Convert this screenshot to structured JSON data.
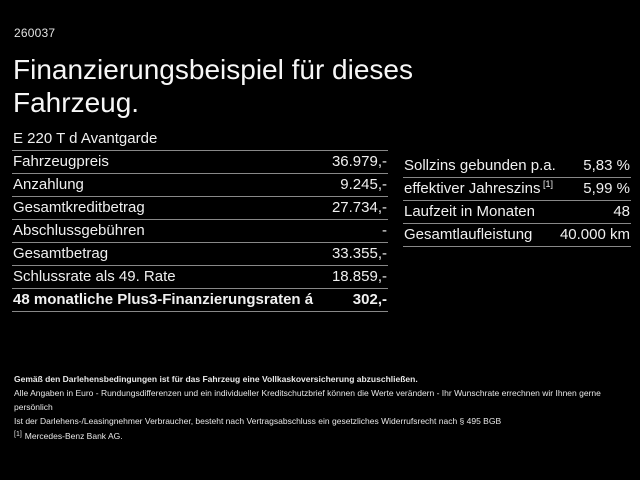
{
  "header": {
    "code": "260037",
    "title": "Finanzierungsbeispiel für dieses Fahrzeug.",
    "vehicle_model": "E 220 T d Avantgarde"
  },
  "finance_table": {
    "rows": [
      {
        "label": "Fahrzeugpreis",
        "value": "36.979,-"
      },
      {
        "label": "Anzahlung",
        "value": "9.245,-"
      },
      {
        "label": "Gesamtkreditbetrag",
        "value": "27.734,-"
      },
      {
        "label": "Abschlussgebühren",
        "value": "-"
      },
      {
        "label": "Gesamtbetrag",
        "value": "33.355,-"
      },
      {
        "label": "Schlussrate als 49. Rate",
        "value": "18.859,-"
      },
      {
        "label": "48 monatliche Plus3-Finanzierungsraten á",
        "value": "302,-",
        "bold": true
      }
    ]
  },
  "conditions_table": {
    "rows": [
      {
        "label": "Sollzins gebunden p.a.",
        "value": "5,83 %"
      },
      {
        "label": "effektiver Jahreszins",
        "sup": "[1]",
        "value": "5,99 %"
      },
      {
        "label": "Laufzeit in Monaten",
        "value": "48"
      },
      {
        "label": "Gesamtlaufleistung",
        "value": "40.000 km"
      }
    ]
  },
  "footer": {
    "insurance_note": "Gemäß den Darlehensbedingungen ist für das Fahrzeug eine Vollkaskoversicherung abzuschließen.",
    "disclaimer_line1": "Alle Angaben in Euro - Rundungsdifferenzen und ein individueller Kreditschutzbrief können die Werte verändern - Ihr Wunschrate errechnen wir Ihnen gerne persönlich",
    "disclaimer_line2": "Ist der Darlehens-/Leasingnehmer Verbraucher, besteht nach Vertragsabschluss ein gesetzliches Widerrufsrecht nach § 495 BGB",
    "footnote_marker": "[1]",
    "footnote_text": "Mercedes-Benz Bank AG."
  },
  "colors": {
    "background": "#000000",
    "text": "#f0f0f0",
    "separator": "#888888"
  }
}
